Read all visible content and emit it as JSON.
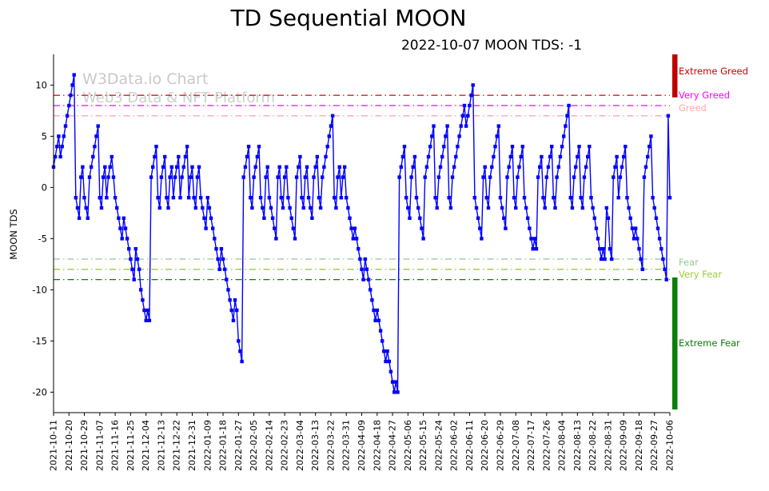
{
  "header": {
    "title": "TD Sequential MOON",
    "subtitle": "2022-10-07 MOON TDS: -1"
  },
  "watermark": {
    "line1": "W3Data.io Chart",
    "line2": "Web3 Data & NFT Platform"
  },
  "chart_data": {
    "type": "line",
    "title": "TD Sequential MOON",
    "subtitle": "2022-10-07 MOON TDS: -1",
    "ylabel": "MOON TDS",
    "line_color": "#0000ff",
    "marker": "square",
    "grid": false,
    "legend_position": "right-outside",
    "ylim": [
      -22,
      13
    ],
    "yticks": [
      10,
      5,
      0,
      -5,
      -10,
      -15,
      -20
    ],
    "x_tick_every": 9,
    "x_tick_labels": [
      "2021-10-11",
      "2021-10-20",
      "2021-10-29",
      "2021-11-07",
      "2021-11-16",
      "2021-11-25",
      "2021-12-04",
      "2021-12-13",
      "2021-12-22",
      "2021-12-31",
      "2022-01-09",
      "2022-01-18",
      "2022-01-27",
      "2022-02-05",
      "2022-02-14",
      "2022-02-23",
      "2022-03-04",
      "2022-03-13",
      "2022-03-22",
      "2022-03-31",
      "2022-04-09",
      "2022-04-18",
      "2022-04-27",
      "2022-05-06",
      "2022-05-15",
      "2022-05-24",
      "2022-06-02",
      "2022-06-11",
      "2022-06-20",
      "2022-06-29",
      "2022-07-08",
      "2022-07-17",
      "2022-07-26",
      "2022-08-04",
      "2022-08-13",
      "2022-08-22",
      "2022-08-31",
      "2022-09-09",
      "2022-09-18",
      "2022-09-27",
      "2022-10-06"
    ],
    "values": [
      2,
      3,
      4,
      5,
      3,
      4,
      5,
      6,
      7,
      8,
      9,
      10,
      11,
      -1,
      -2,
      -3,
      1,
      2,
      -1,
      -2,
      -3,
      1,
      2,
      3,
      4,
      5,
      6,
      -1,
      -2,
      1,
      2,
      -1,
      1,
      2,
      3,
      1,
      -1,
      -2,
      -3,
      -4,
      -5,
      -3,
      -4,
      -5,
      -6,
      -7,
      -8,
      -9,
      -6,
      -7,
      -8,
      -10,
      -11,
      -12,
      -13,
      -12,
      -13,
      1,
      2,
      3,
      4,
      -1,
      -2,
      1,
      2,
      3,
      -1,
      -2,
      1,
      2,
      -1,
      1,
      2,
      3,
      -1,
      1,
      2,
      3,
      4,
      -1,
      1,
      2,
      -1,
      -2,
      1,
      2,
      -1,
      -2,
      -3,
      -4,
      -1,
      -2,
      -3,
      -4,
      -5,
      -6,
      -7,
      -8,
      -6,
      -7,
      -8,
      -9,
      -10,
      -11,
      -12,
      -13,
      -11,
      -12,
      -15,
      -16,
      -17,
      1,
      2,
      3,
      4,
      -1,
      -2,
      1,
      2,
      3,
      4,
      -1,
      -2,
      -3,
      1,
      2,
      -1,
      -2,
      -3,
      -4,
      -5,
      1,
      2,
      -1,
      -2,
      1,
      2,
      -1,
      -2,
      -3,
      -4,
      -5,
      1,
      2,
      3,
      -1,
      -2,
      1,
      2,
      -1,
      -2,
      -3,
      1,
      2,
      3,
      -1,
      -2,
      1,
      2,
      3,
      4,
      5,
      6,
      7,
      -1,
      -2,
      1,
      2,
      -1,
      1,
      2,
      -1,
      -2,
      -3,
      -4,
      -5,
      -4,
      -5,
      -6,
      -7,
      -8,
      -9,
      -7,
      -8,
      -9,
      -10,
      -11,
      -12,
      -13,
      -12,
      -13,
      -14,
      -15,
      -16,
      -17,
      -16,
      -17,
      -18,
      -19,
      -20,
      -19,
      -20,
      1,
      2,
      3,
      4,
      -1,
      -2,
      -3,
      1,
      2,
      3,
      -1,
      -2,
      -3,
      -4,
      -5,
      1,
      2,
      3,
      4,
      5,
      6,
      -1,
      -2,
      1,
      2,
      3,
      4,
      5,
      6,
      -1,
      -2,
      1,
      2,
      3,
      4,
      5,
      6,
      7,
      8,
      6,
      7,
      8,
      9,
      10,
      -1,
      -2,
      -3,
      -4,
      -5,
      1,
      2,
      -1,
      -2,
      1,
      2,
      3,
      4,
      5,
      6,
      -1,
      -2,
      -3,
      -4,
      1,
      2,
      3,
      4,
      -1,
      -2,
      1,
      2,
      3,
      4,
      -1,
      -2,
      -3,
      -4,
      -5,
      -6,
      -5,
      -6,
      1,
      2,
      3,
      -1,
      -2,
      1,
      2,
      3,
      4,
      -1,
      -2,
      1,
      2,
      3,
      4,
      5,
      6,
      7,
      8,
      -1,
      -2,
      1,
      2,
      3,
      4,
      -1,
      -2,
      1,
      2,
      3,
      4,
      -1,
      -2,
      -3,
      -4,
      -5,
      -6,
      -7,
      -6,
      -7,
      -2,
      -3,
      -6,
      -7,
      1,
      2,
      3,
      -1,
      1,
      2,
      3,
      4,
      -1,
      -2,
      -3,
      -4,
      -5,
      -4,
      -5,
      -6,
      -7,
      -8,
      1,
      2,
      3,
      4,
      5,
      -1,
      -2,
      -3,
      -4,
      -5,
      -6,
      -7,
      -8,
      -9,
      7,
      -1
    ],
    "zones": [
      {
        "label": "Extreme Greed",
        "y": 9,
        "line_color": "#cc2222",
        "label_color": "#cc0000",
        "label_y": 11.3
      },
      {
        "label": "Very Greed",
        "y": 8,
        "line_color": "#ff00ff",
        "label_color": "#ff00ff",
        "label_y": 8.9
      },
      {
        "label": "Greed",
        "y": 7,
        "line_color": "#ffa8a8",
        "label_color": "#ffa8a8",
        "label_y": 7.7
      },
      {
        "label": "Fear",
        "y": -7,
        "line_color": "#96c696",
        "label_color": "#96c696",
        "label_y": -7.4
      },
      {
        "label": "Very Fear",
        "y": -8,
        "line_color": "#9acd32",
        "label_color": "#9acd32",
        "label_y": -8.6
      },
      {
        "label": "Extreme Fear",
        "y": -9,
        "line_color": "#0a7d0a",
        "label_color": "#0a7d0a",
        "label_y": -15.3
      }
    ],
    "side_bars": [
      {
        "name": "extreme-greed-bar",
        "color": "#c00000",
        "from": 13,
        "to": 8.8
      },
      {
        "name": "extreme-fear-bar",
        "color": "#0a7d0a",
        "from": -8.8,
        "to": -21.7
      }
    ]
  }
}
